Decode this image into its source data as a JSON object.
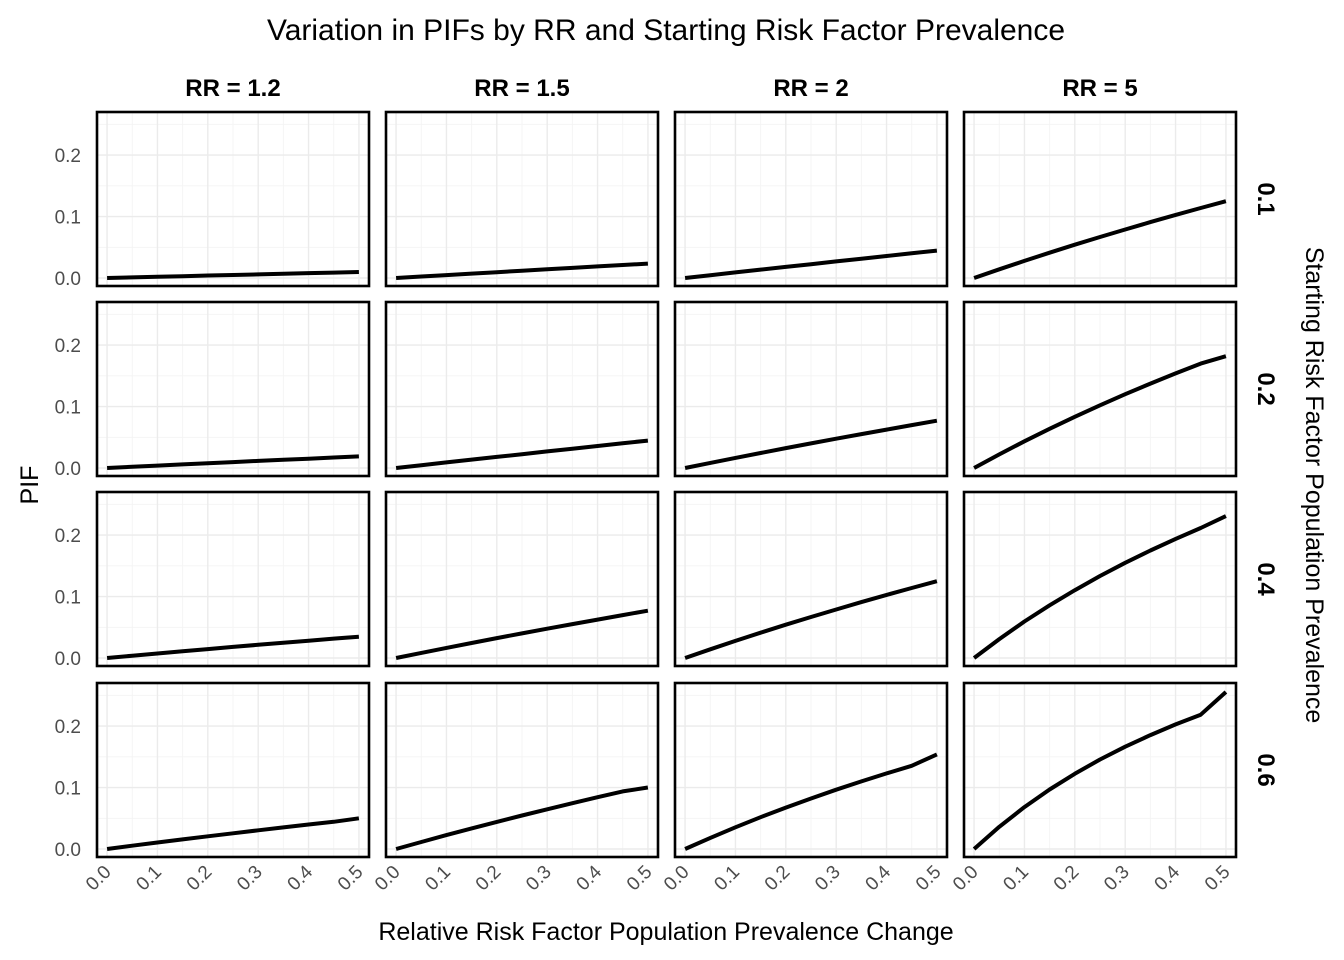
{
  "chart_data": {
    "type": "line",
    "title": "Variation in PIFs by RR and Starting Risk Factor Prevalence",
    "xlabel": "Relative Risk Factor Population Prevalence Change",
    "ylabel": "PIF",
    "facet_col_label": "",
    "facet_row_label": "Starting Risk Factor Population Prevalence",
    "col_facets": [
      "RR = 1.2",
      "RR = 1.5",
      "RR = 2",
      "RR = 5"
    ],
    "row_facets": [
      "0.1",
      "0.2",
      "0.4",
      "0.6"
    ],
    "x_ticks": [
      "0.0",
      "0.1",
      "0.2",
      "0.3",
      "0.4",
      "0.5"
    ],
    "y_ticks": [
      "0.0",
      "0.1",
      "0.2"
    ],
    "xlim": [
      -0.02,
      0.52
    ],
    "ylim": [
      -0.013,
      0.27
    ],
    "grid": true,
    "x": [
      0,
      0.05,
      0.1,
      0.15,
      0.2,
      0.25,
      0.3,
      0.35,
      0.4,
      0.45,
      0.5
    ],
    "panels": [
      {
        "rr": "RR = 1.2",
        "prevalence": "0.1",
        "values": [
          0,
          0.001,
          0.002,
          0.003,
          0.004,
          0.0049,
          0.0059,
          0.0069,
          0.0079,
          0.0088,
          0.0098
        ]
      },
      {
        "rr": "RR = 1.5",
        "prevalence": "0.1",
        "values": [
          0,
          0.0024,
          0.0048,
          0.0071,
          0.0095,
          0.0119,
          0.0142,
          0.0165,
          0.0189,
          0.0212,
          0.0235
        ]
      },
      {
        "rr": "RR = 2",
        "prevalence": "0.1",
        "values": [
          0,
          0.0045,
          0.0091,
          0.0136,
          0.018,
          0.0225,
          0.027,
          0.0314,
          0.0358,
          0.0403,
          0.0445
        ]
      },
      {
        "rr": "RR = 5",
        "prevalence": "0.1",
        "values": [
          0,
          0.0141,
          0.0278,
          0.0412,
          0.0541,
          0.0667,
          0.0789,
          0.0909,
          0.1026,
          0.1139,
          0.125
        ]
      },
      {
        "rr": "RR = 1.2",
        "prevalence": "0.2",
        "values": [
          0,
          0.0019,
          0.0039,
          0.0058,
          0.0077,
          0.0096,
          0.0115,
          0.0134,
          0.0152,
          0.0171,
          0.0189
        ]
      },
      {
        "rr": "RR = 1.5",
        "prevalence": "0.2",
        "values": [
          0,
          0.0045,
          0.0091,
          0.0136,
          0.018,
          0.0225,
          0.027,
          0.0314,
          0.0358,
          0.0403,
          0.0445
        ]
      },
      {
        "rr": "RR = 2",
        "prevalence": "0.2",
        "values": [
          0,
          0.0083,
          0.0164,
          0.0244,
          0.0323,
          0.04,
          0.0476,
          0.0551,
          0.0625,
          0.0698,
          0.0769
        ]
      },
      {
        "rr": "RR = 5",
        "prevalence": "0.2",
        "values": [
          0,
          0.0222,
          0.0435,
          0.0638,
          0.0833,
          0.102,
          0.12,
          0.1373,
          0.1538,
          0.1698,
          0.1818
        ]
      },
      {
        "rr": "RR = 1.2",
        "prevalence": "0.4",
        "values": [
          0,
          0.0037,
          0.0073,
          0.0109,
          0.0145,
          0.018,
          0.0214,
          0.0248,
          0.0282,
          0.0315,
          0.0347
        ]
      },
      {
        "rr": "RR = 1.5",
        "prevalence": "0.4",
        "values": [
          0,
          0.0083,
          0.0164,
          0.0244,
          0.0323,
          0.04,
          0.0476,
          0.0551,
          0.0625,
          0.0698,
          0.0769
        ]
      },
      {
        "rr": "RR = 2",
        "prevalence": "0.4",
        "values": [
          0,
          0.0141,
          0.0278,
          0.0412,
          0.0541,
          0.0667,
          0.0789,
          0.0909,
          0.1026,
          0.1139,
          0.125
        ]
      },
      {
        "rr": "RR = 5",
        "prevalence": "0.4",
        "values": [
          0,
          0.0308,
          0.0593,
          0.0857,
          0.1103,
          0.1333,
          0.1548,
          0.1749,
          0.1937,
          0.2115,
          0.2308
        ]
      },
      {
        "rr": "RR = 1.2",
        "prevalence": "0.6",
        "values": [
          0,
          0.0053,
          0.0106,
          0.0157,
          0.0207,
          0.0256,
          0.0304,
          0.0351,
          0.0398,
          0.0443,
          0.05
        ]
      },
      {
        "rr": "RR = 1.5",
        "prevalence": "0.6",
        "values": [
          0,
          0.0114,
          0.0226,
          0.0335,
          0.0441,
          0.0545,
          0.0646,
          0.0745,
          0.0842,
          0.0937,
          0.1
        ]
      },
      {
        "rr": "RR = 2",
        "prevalence": "0.6",
        "values": [
          0,
          0.0181,
          0.0353,
          0.0517,
          0.0674,
          0.0822,
          0.0964,
          0.11,
          0.123,
          0.1354,
          0.1538
        ]
      },
      {
        "rr": "RR = 5",
        "prevalence": "0.6",
        "values": [
          0,
          0.0361,
          0.0682,
          0.0968,
          0.1224,
          0.1455,
          0.1664,
          0.1853,
          0.2026,
          0.2185,
          0.2553
        ]
      }
    ]
  }
}
